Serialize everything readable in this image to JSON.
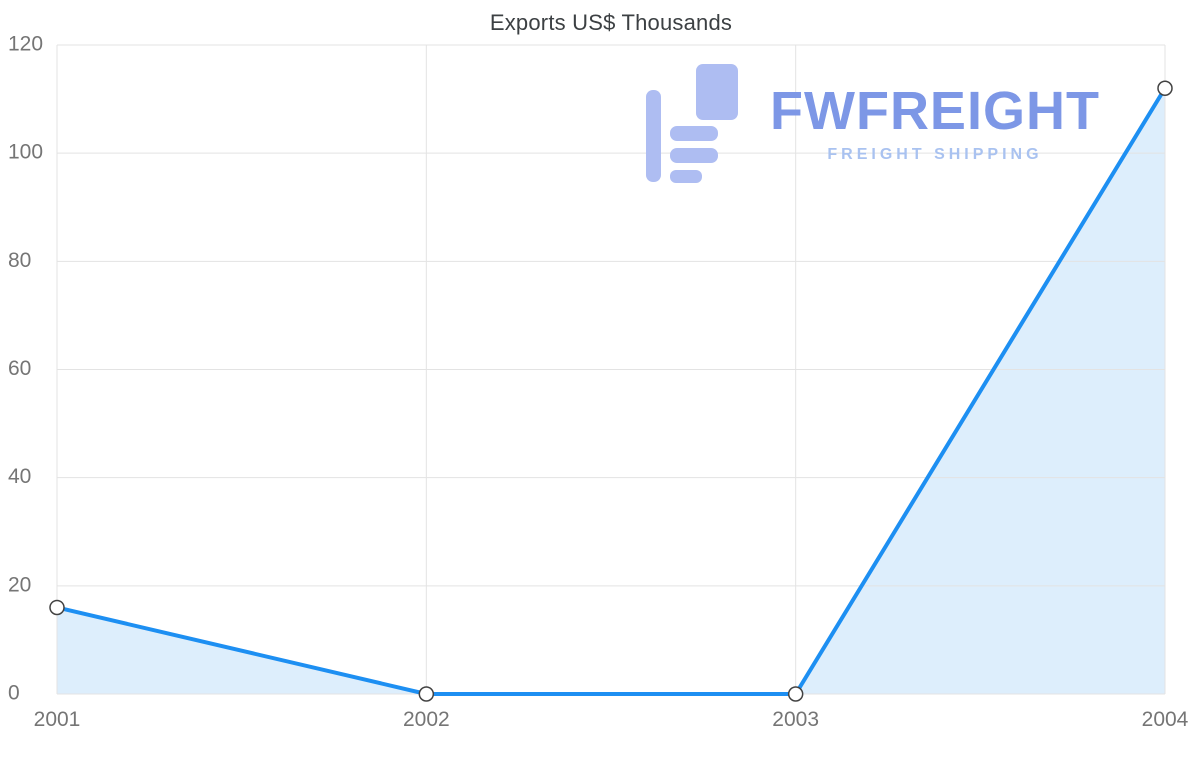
{
  "chart_data": {
    "type": "area",
    "title": "Exports US$ Thousands",
    "x": [
      "2001",
      "2002",
      "2003",
      "2004"
    ],
    "series": [
      {
        "name": "Exports US$ Thousands",
        "values": [
          16,
          0,
          0,
          112
        ]
      }
    ],
    "xlabel": "",
    "ylabel": "",
    "ylim": [
      0,
      120
    ],
    "yticks": [
      0,
      20,
      40,
      60,
      80,
      100,
      120
    ],
    "grid": true,
    "legend": "none",
    "line_color": "#1d8ff2",
    "fill_color": "#ddeefc",
    "marker_fill": "#ffffff",
    "marker_stroke": "#424242",
    "grid_color": "#e3e3e3",
    "axis_label_color": "#757575",
    "title_color": "#3c4043"
  },
  "watermark": {
    "name": "FWFREIGHT",
    "tagline": "FREIGHT SHIPPING",
    "text_color": "#7d97e6",
    "icon_color": "#aebdf2",
    "tagline_color": "#a9c2f0"
  }
}
